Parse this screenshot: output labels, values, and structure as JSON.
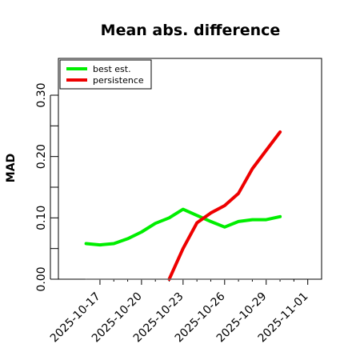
{
  "chart_data": {
    "type": "line",
    "title": "Mean abs. difference",
    "xlabel": "",
    "ylabel": "MAD",
    "x_ticks": [
      "2025-10-17",
      "2025-10-20",
      "2025-10-23",
      "2025-10-26",
      "2025-10-29",
      "2025-11-01"
    ],
    "y_ticks": [
      "0.00",
      "0.10",
      "0.20",
      "0.30"
    ],
    "xlim": [
      "2025-10-14",
      "2025-11-02"
    ],
    "ylim": [
      0,
      0.36
    ],
    "legend_position": "top-left",
    "grid": false,
    "x": [
      "2025-10-16",
      "2025-10-17",
      "2025-10-18",
      "2025-10-19",
      "2025-10-20",
      "2025-10-21",
      "2025-10-22",
      "2025-10-23",
      "2025-10-24",
      "2025-10-25",
      "2025-10-26",
      "2025-10-27",
      "2025-10-28",
      "2025-10-29",
      "2025-10-30"
    ],
    "series": [
      {
        "name": "best est.",
        "color": "#00ee00",
        "values": [
          0.058,
          0.056,
          0.058,
          0.066,
          0.077,
          0.091,
          0.1,
          0.114,
          0.104,
          0.094,
          0.085,
          0.094,
          0.097,
          0.097,
          0.102
        ]
      },
      {
        "name": "persistence",
        "color": "#ee0000",
        "values": [
          null,
          null,
          null,
          null,
          null,
          null,
          0.0,
          0.05,
          0.092,
          0.108,
          0.12,
          0.14,
          0.18,
          0.21,
          0.24
        ]
      },
      {
        "name": "",
        "color": "#666666",
        "values": [
          0,
          0,
          0,
          0,
          0,
          0,
          0,
          0,
          0,
          0,
          0,
          0,
          0,
          0,
          0
        ]
      }
    ]
  }
}
